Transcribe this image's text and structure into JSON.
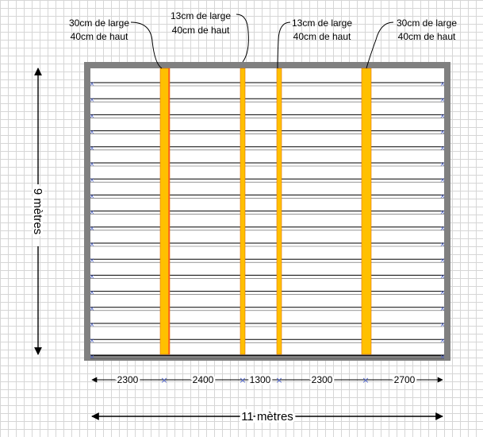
{
  "beam_labels": [
    {
      "width": "30cm de large",
      "height": "40cm de haut"
    },
    {
      "width": "13cm de large",
      "height": "40cm de haut"
    },
    {
      "width": "13cm de large",
      "height": "40cm de haut"
    },
    {
      "width": "30cm de large",
      "height": "40cm de haut"
    }
  ],
  "dimensions": {
    "height_label": "9 mètres",
    "width_label": "11 mètres",
    "segments": [
      "2300",
      "2400",
      "1300",
      "2300",
      "2700"
    ]
  },
  "colors": {
    "beam_fill": "#ffc000",
    "frame": "#808080",
    "rail_line": "#000000",
    "marker": "#4a60c8"
  }
}
